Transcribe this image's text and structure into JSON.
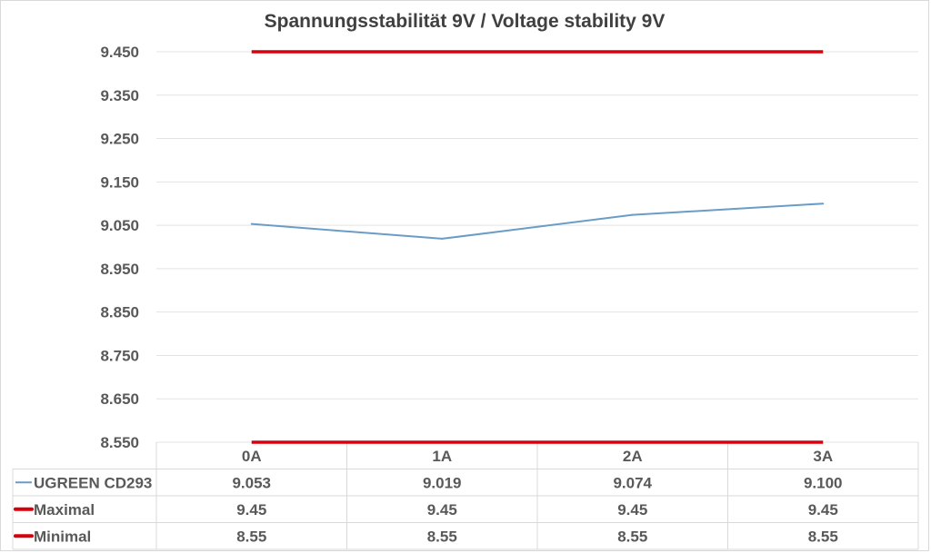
{
  "chart_data": {
    "type": "line",
    "title": "Spannungsstabilität 9V / Voltage stability 9V",
    "categories": [
      "0A",
      "1A",
      "2A",
      "3A"
    ],
    "ylim": [
      8.55,
      9.45
    ],
    "yticks": [
      "9.450",
      "9.350",
      "9.250",
      "9.150",
      "9.050",
      "8.950",
      "8.850",
      "8.750",
      "8.650",
      "8.550"
    ],
    "ytick_values": [
      9.45,
      9.35,
      9.25,
      9.15,
      9.05,
      8.95,
      8.85,
      8.75,
      8.65,
      8.55
    ],
    "grid": true,
    "legend": "data-table",
    "series": [
      {
        "name": "UGREEN CD293",
        "values": [
          9.053,
          9.019,
          9.074,
          9.1
        ],
        "labels": [
          "9.053",
          "9.019",
          "9.074",
          "9.100"
        ],
        "color": "#6a9cc8"
      },
      {
        "name": "Maximal",
        "values": [
          9.45,
          9.45,
          9.45,
          9.45
        ],
        "labels": [
          "9.45",
          "9.45",
          "9.45",
          "9.45"
        ],
        "color": "#d9000d"
      },
      {
        "name": "Minimal",
        "values": [
          8.55,
          8.55,
          8.55,
          8.55
        ],
        "labels": [
          "8.55",
          "8.55",
          "8.55",
          "8.55"
        ],
        "color": "#d9000d"
      }
    ]
  }
}
